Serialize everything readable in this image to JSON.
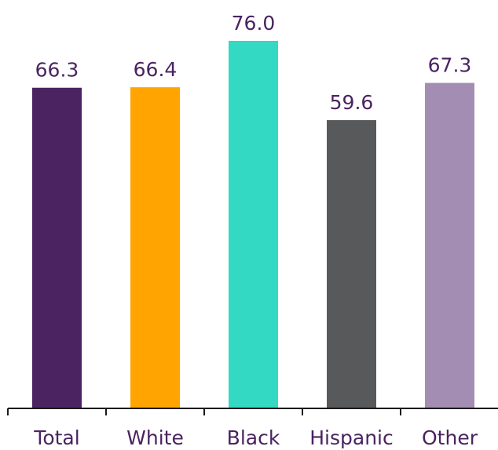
{
  "chart_data": {
    "type": "bar",
    "title": "",
    "xlabel": "",
    "ylabel": "",
    "categories": [
      "Total",
      "White",
      "Black",
      "Hispanic",
      "Other"
    ],
    "values": [
      66.3,
      66.4,
      76.0,
      59.6,
      67.3
    ],
    "value_labels": [
      "66.3",
      "66.4",
      "76.0",
      "59.6",
      "67.3"
    ],
    "colors": [
      "#4a2360",
      "#ffa400",
      "#34d9c3",
      "#58595b",
      "#a48db3"
    ],
    "ylim": [
      0,
      84
    ],
    "grid": false,
    "legend": "none"
  }
}
